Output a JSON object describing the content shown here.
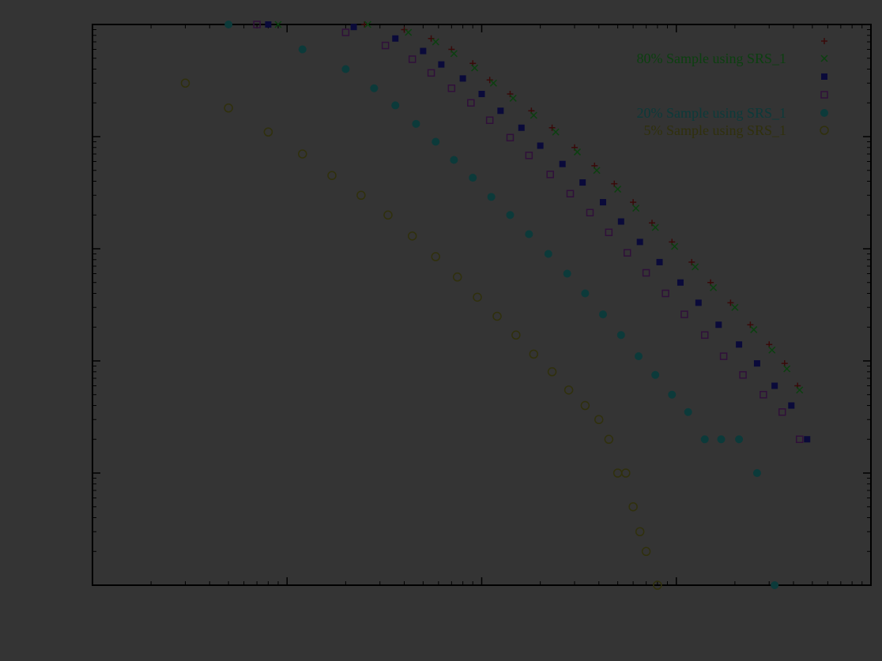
{
  "chart_data": {
    "type": "scatter",
    "title": "",
    "xlabel": "",
    "ylabel": "",
    "x_scale": "log",
    "y_scale": "log",
    "xlim": [
      1,
      10000
    ],
    "ylim": [
      1,
      100000
    ],
    "legend_position": "top-right",
    "grid": false,
    "background": "#343434",
    "axis_color": "#000000",
    "series": [
      {
        "name": "",
        "color": "#3a0a0a",
        "marker": "plus",
        "x": [
          8,
          25,
          40,
          55,
          70,
          90,
          110,
          140,
          180,
          230,
          300,
          380,
          480,
          600,
          750,
          950,
          1200,
          1500,
          1900,
          2400,
          3000,
          3600,
          4200
        ],
        "y": [
          100000,
          100000,
          90000,
          75000,
          60000,
          45000,
          32000,
          24000,
          17000,
          12000,
          8000,
          5500,
          3800,
          2600,
          1700,
          1150,
          760,
          500,
          330,
          210,
          140,
          95,
          60
        ]
      },
      {
        "name": "80% Sample using SRS_1",
        "color": "#0c4010",
        "marker": "x",
        "x": [
          9,
          26,
          42,
          58,
          72,
          92,
          115,
          145,
          185,
          240,
          310,
          390,
          500,
          620,
          780,
          980,
          1250,
          1550,
          2000,
          2500,
          3100,
          3700,
          4300
        ],
        "y": [
          100000,
          100000,
          85000,
          70000,
          55000,
          41000,
          30000,
          22000,
          15500,
          11000,
          7300,
          5000,
          3400,
          2300,
          1550,
          1050,
          690,
          450,
          300,
          190,
          125,
          85,
          55
        ]
      },
      {
        "name": "",
        "color": "#0a0a3a",
        "marker": "square",
        "x": [
          8,
          22,
          36,
          50,
          62,
          80,
          100,
          125,
          160,
          200,
          260,
          330,
          420,
          520,
          650,
          820,
          1050,
          1300,
          1650,
          2100,
          2600,
          3200,
          3900,
          4700
        ],
        "y": [
          100000,
          95000,
          75000,
          58000,
          44000,
          33000,
          24000,
          17000,
          12000,
          8300,
          5700,
          3900,
          2600,
          1750,
          1150,
          760,
          500,
          330,
          210,
          140,
          95,
          60,
          40,
          20
        ]
      },
      {
        "name": "",
        "color": "#30103a",
        "marker": "square-open",
        "x": [
          7,
          20,
          32,
          44,
          55,
          70,
          88,
          110,
          140,
          175,
          225,
          285,
          360,
          450,
          560,
          700,
          880,
          1100,
          1400,
          1750,
          2200,
          2800,
          3500,
          4300
        ],
        "y": [
          100000,
          85000,
          65000,
          49000,
          37000,
          27000,
          20000,
          14000,
          9800,
          6800,
          4600,
          3100,
          2100,
          1400,
          920,
          610,
          400,
          260,
          170,
          110,
          75,
          50,
          35,
          20
        ]
      },
      {
        "name": "20% Sample using SRS_1",
        "color": "#0c3a3a",
        "marker": "circle",
        "x": [
          5,
          12,
          20,
          28,
          36,
          46,
          58,
          72,
          90,
          112,
          140,
          175,
          220,
          275,
          340,
          420,
          520,
          640,
          780,
          950,
          1150,
          1400,
          1700,
          2100,
          2600,
          3200
        ],
        "y": [
          100000,
          60000,
          40000,
          27000,
          19000,
          13000,
          9000,
          6200,
          4300,
          2900,
          2000,
          1350,
          900,
          600,
          400,
          260,
          170,
          110,
          75,
          50,
          35,
          20,
          20,
          20,
          10,
          1
        ]
      },
      {
        "name": "5% Sample using SRS_1",
        "color": "#30300c",
        "marker": "circle-open",
        "x": [
          3,
          5,
          8,
          12,
          17,
          24,
          33,
          44,
          58,
          75,
          95,
          120,
          150,
          185,
          230,
          280,
          340,
          400,
          450,
          500,
          550,
          600,
          650,
          700,
          800
        ],
        "y": [
          30000,
          18000,
          11000,
          7000,
          4500,
          3000,
          2000,
          1300,
          850,
          560,
          370,
          250,
          170,
          115,
          80,
          55,
          40,
          30,
          20,
          10,
          10,
          5,
          3,
          2,
          1
        ]
      }
    ]
  }
}
